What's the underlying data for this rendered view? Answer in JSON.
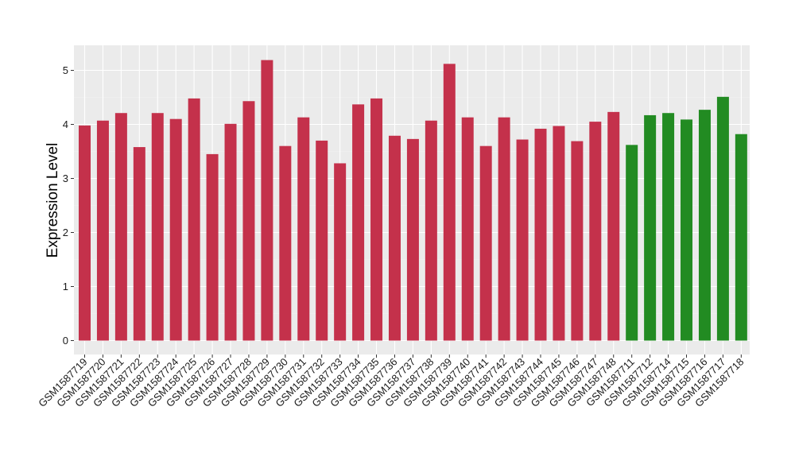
{
  "chart_data": {
    "type": "bar",
    "title": "",
    "xlabel": "",
    "ylabel": "Expression Level",
    "ylim": [
      0,
      5.4
    ],
    "yticks": [
      0,
      1,
      2,
      3,
      4,
      5
    ],
    "grid": true,
    "legend": "none",
    "colors": {
      "red_group": "#c4314b",
      "green_group": "#228b22",
      "panel_bg": "#ebebeb",
      "grid": "#ffffff"
    },
    "categories": [
      "GSM1587719",
      "GSM1587720",
      "GSM1587721",
      "GSM1587722",
      "GSM1587723",
      "GSM1587724",
      "GSM1587725",
      "GSM1587726",
      "GSM1587727",
      "GSM1587728",
      "GSM1587729",
      "GSM1587730",
      "GSM1587731",
      "GSM1587732",
      "GSM1587733",
      "GSM1587734",
      "GSM1587735",
      "GSM1587736",
      "GSM1587737",
      "GSM1587738",
      "GSM1587739",
      "GSM1587740",
      "GSM1587741",
      "GSM1587742",
      "GSM1587743",
      "GSM1587744",
      "GSM1587745",
      "GSM1587746",
      "GSM1587747",
      "GSM1587748",
      "GSM1587711",
      "GSM1587712",
      "GSM1587714",
      "GSM1587715",
      "GSM1587716",
      "GSM1587717",
      "GSM1587718"
    ],
    "values": [
      3.98,
      4.07,
      4.21,
      3.58,
      4.21,
      4.1,
      4.48,
      3.45,
      4.01,
      4.43,
      5.19,
      3.6,
      4.13,
      3.7,
      3.28,
      4.37,
      4.48,
      3.79,
      3.73,
      4.07,
      5.12,
      4.13,
      3.6,
      4.13,
      3.72,
      3.92,
      3.97,
      3.69,
      4.05,
      4.23,
      3.62,
      4.17,
      4.21,
      4.09,
      4.27,
      4.51,
      3.82
    ],
    "groups": [
      "red",
      "red",
      "red",
      "red",
      "red",
      "red",
      "red",
      "red",
      "red",
      "red",
      "red",
      "red",
      "red",
      "red",
      "red",
      "red",
      "red",
      "red",
      "red",
      "red",
      "red",
      "red",
      "red",
      "red",
      "red",
      "red",
      "red",
      "red",
      "red",
      "red",
      "green",
      "green",
      "green",
      "green",
      "green",
      "green",
      "green"
    ]
  }
}
